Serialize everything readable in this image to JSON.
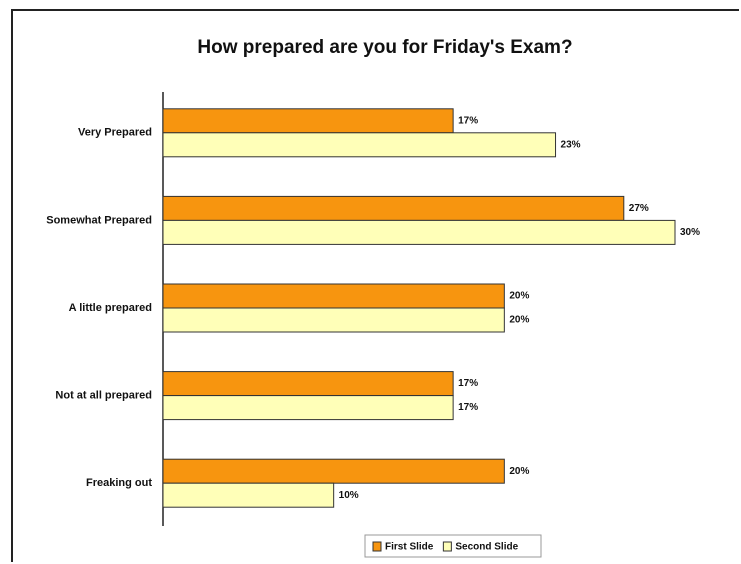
{
  "chart_data": {
    "type": "bar",
    "orientation": "horizontal",
    "title": "How prepared are you for Friday's Exam?",
    "categories": [
      "Very Prepared",
      "Somewhat Prepared",
      "A little prepared",
      "Not at all prepared",
      "Freaking out"
    ],
    "series": [
      {
        "name": "First Slide",
        "color": "#f7950f",
        "values": [
          17,
          27,
          20,
          17,
          20
        ],
        "value_labels": [
          "17%",
          "27%",
          "20%",
          "17%",
          "20%"
        ]
      },
      {
        "name": "Second Slide",
        "color": "#ffffb8",
        "values": [
          23,
          30,
          20,
          17,
          10
        ],
        "value_labels": [
          "23%",
          "30%",
          "20%",
          "17%",
          "10%"
        ]
      }
    ],
    "legend": "bottom"
  }
}
